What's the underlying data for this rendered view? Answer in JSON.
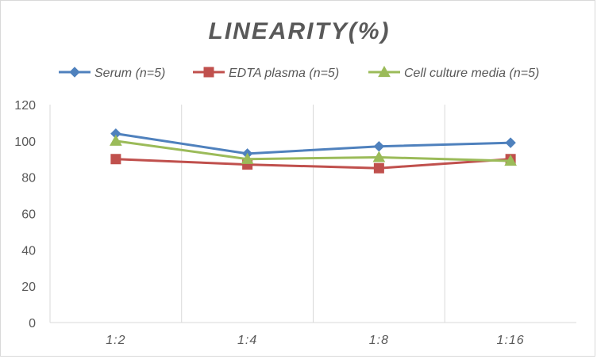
{
  "chart_data": {
    "type": "line",
    "title": "LINEARITY(%)",
    "categories": [
      "1:2",
      "1:4",
      "1:8",
      "1:16"
    ],
    "ylim": [
      0,
      120
    ],
    "yticks": [
      0,
      20,
      40,
      60,
      80,
      100,
      120
    ],
    "grid": "vertical",
    "legend_position": "top",
    "series": [
      {
        "name": "Serum (n=5)",
        "values": [
          104,
          93,
          97,
          99
        ],
        "color": "#4f81bd",
        "marker": "diamond"
      },
      {
        "name": "EDTA plasma (n=5)",
        "values": [
          90,
          87,
          85,
          90
        ],
        "color": "#c0504d",
        "marker": "square"
      },
      {
        "name": "Cell culture media (n=5)",
        "values": [
          100,
          90,
          91,
          89
        ],
        "color": "#9bbb59",
        "marker": "triangle"
      }
    ]
  }
}
